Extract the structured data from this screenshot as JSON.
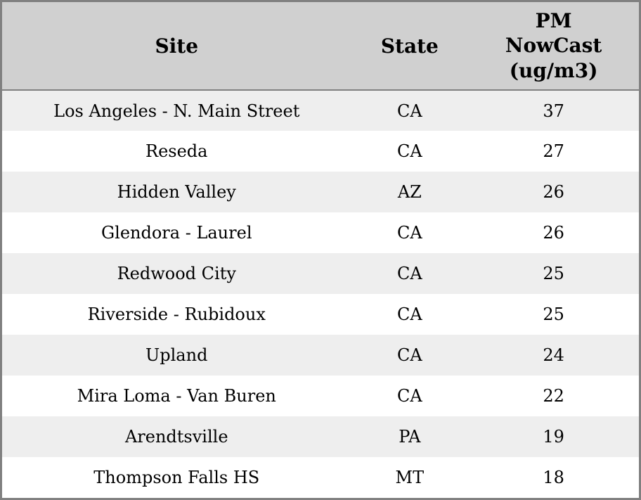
{
  "table": {
    "columns": [
      {
        "label": "Site"
      },
      {
        "label": "State"
      },
      {
        "label": "PM\nNowCast\n(ug/m3)"
      }
    ],
    "rows": [
      {
        "site": "Los Angeles - N. Main Street",
        "state": "CA",
        "value": "37"
      },
      {
        "site": "Reseda",
        "state": "CA",
        "value": "27"
      },
      {
        "site": "Hidden Valley",
        "state": "AZ",
        "value": "26"
      },
      {
        "site": "Glendora - Laurel",
        "state": "CA",
        "value": "26"
      },
      {
        "site": "Redwood City",
        "state": "CA",
        "value": "25"
      },
      {
        "site": "Riverside - Rubidoux",
        "state": "CA",
        "value": "25"
      },
      {
        "site": "Upland",
        "state": "CA",
        "value": "24"
      },
      {
        "site": "Mira Loma - Van Buren",
        "state": "CA",
        "value": "22"
      },
      {
        "site": "Arendtsville",
        "state": "PA",
        "value": "19"
      },
      {
        "site": "Thompson Falls HS",
        "state": "MT",
        "value": "18"
      }
    ]
  },
  "colors": {
    "outer_border": "#808080",
    "header_background": "#d0d0d0",
    "header_border_bottom": "#808080",
    "row_odd_background": "#eeeeee",
    "row_even_background": "#ffffff",
    "text": "#000000"
  },
  "chart_data": {
    "type": "table",
    "title": "",
    "columns": [
      "Site",
      "State",
      "PM NowCast (ug/m3)"
    ],
    "rows": [
      [
        "Los Angeles - N. Main Street",
        "CA",
        37
      ],
      [
        "Reseda",
        "CA",
        27
      ],
      [
        "Hidden Valley",
        "AZ",
        26
      ],
      [
        "Glendora - Laurel",
        "CA",
        26
      ],
      [
        "Redwood City",
        "CA",
        25
      ],
      [
        "Riverside - Rubidoux",
        "CA",
        25
      ],
      [
        "Upland",
        "CA",
        24
      ],
      [
        "Mira Loma - Van Buren",
        "CA",
        22
      ],
      [
        "Arendtsville",
        "PA",
        19
      ],
      [
        "Thompson Falls HS",
        "MT",
        18
      ]
    ],
    "layout_hints": {
      "striped_rows": true,
      "header_shaded": true,
      "cell_alignment": "center",
      "sorted_by": "PM NowCast (ug/m3) descending"
    }
  }
}
